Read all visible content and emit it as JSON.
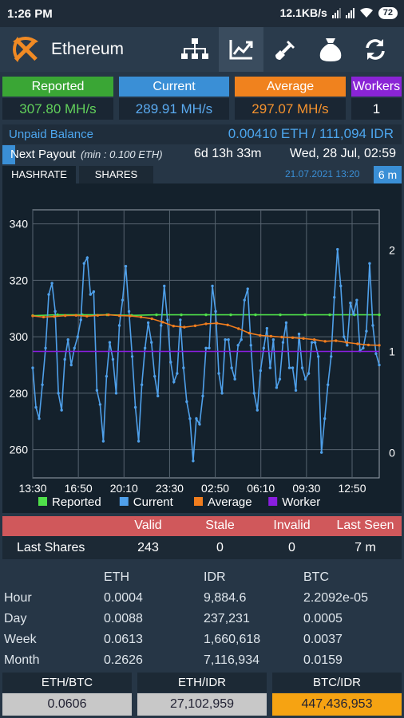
{
  "status": {
    "time": "1:26 PM",
    "speed": "12.1KB/s",
    "battery": "72"
  },
  "header": {
    "title": "Ethereum"
  },
  "nav": [
    "network-icon",
    "chart-icon",
    "shovel-icon",
    "money-bag-icon",
    "refresh-icon"
  ],
  "stats": [
    {
      "label": "Reported",
      "value": "307.80 MH/s",
      "color": "#3aa635"
    },
    {
      "label": "Current",
      "value": "289.91 MH/s",
      "color": "#3a8fd6"
    },
    {
      "label": "Average",
      "value": "297.07 MH/s",
      "color": "#f0821e"
    },
    {
      "label": "Workers",
      "value": "1",
      "color": "#8a24d6"
    }
  ],
  "balance": {
    "label": "Unpaid Balance",
    "value": "0.00410 ETH / 111,094 IDR"
  },
  "payout": {
    "label": "Next Payout",
    "min": "(min : 0.100 ETH)",
    "eta": "6d 13h 33m",
    "date": "Wed, 28 Jul, 02:59"
  },
  "tabs": {
    "hashrate": "HASHRATE",
    "shares": "SHARES",
    "timestamp": "21.07.2021 13:20",
    "range": "6 m"
  },
  "chart_data": {
    "type": "line",
    "x_ticks": [
      "13:30",
      "16:50",
      "20:10",
      "23:30",
      "02:50",
      "06:10",
      "09:30",
      "12:50"
    ],
    "y_ticks": [
      "340",
      "320",
      "300",
      "280",
      "260"
    ],
    "y2_ticks": [
      "2",
      "1",
      "0"
    ],
    "ylim": [
      250,
      345
    ],
    "y2lim": [
      -0.25,
      2.4
    ],
    "grid": true,
    "legend": "bottom",
    "series": [
      {
        "name": "Reported",
        "color": "#4fe04a",
        "style": "flat",
        "values": [
          307.5,
          307.8,
          307.8,
          307.8,
          307.6,
          307.8,
          307.8,
          307.8,
          307.8,
          307.8,
          307.8,
          307.8,
          307.8,
          307.8,
          307.8
        ]
      },
      {
        "name": "Current",
        "color": "#4fa0ea",
        "values": [
          289,
          275,
          271,
          283,
          296,
          315,
          319,
          309,
          280,
          274,
          292,
          299,
          290,
          296,
          300,
          306,
          326,
          328,
          315,
          316,
          281,
          276,
          263,
          286,
          298,
          292,
          280,
          304,
          313,
          325,
          309,
          293,
          275,
          263,
          283,
          296,
          305,
          298,
          286,
          279,
          304,
          318,
          306,
          291,
          284,
          287,
          306,
          289,
          277,
          271,
          256,
          271,
          269,
          279,
          296,
          296,
          318,
          309,
          287,
          280,
          299,
          299,
          289,
          285,
          297,
          299,
          313,
          317,
          297,
          280,
          274,
          288,
          296,
          303,
          289,
          299,
          282,
          285,
          298,
          305,
          289,
          289,
          281,
          301,
          289,
          285,
          287,
          298,
          298,
          293,
          259,
          271,
          283,
          293,
          314,
          331,
          318,
          300,
          297,
          312,
          308,
          313,
          295,
          296,
          302,
          326,
          304,
          294,
          290
        ]
      },
      {
        "name": "Average",
        "color": "#f07d1e",
        "values": [
          307.4,
          307.0,
          307.2,
          307.5,
          307.6,
          307.3,
          307.6,
          307.8,
          307.5,
          307.4,
          307.0,
          306.4,
          305.2,
          303.8,
          303.4,
          303.9,
          304.6,
          304.8,
          304.2,
          302.9,
          301.3,
          300.5,
          300.2,
          299.9,
          299.7,
          299.4,
          299.0,
          298.4,
          298.6,
          298.0,
          297.5,
          297.1,
          297.0
        ]
      },
      {
        "name": "Worker",
        "color": "#8a1ee0",
        "axis": "right",
        "values": [
          1,
          1
        ]
      }
    ]
  },
  "shares": {
    "headers": [
      "Valid",
      "Stale",
      "Invalid",
      "Last Seen"
    ],
    "label": "Last Shares",
    "values": [
      "243",
      "0",
      "0",
      "7 m"
    ]
  },
  "earnings": {
    "columns": [
      "ETH",
      "IDR",
      "BTC"
    ],
    "rows": [
      {
        "label": "Hour",
        "eth": "0.0004",
        "idr": "9,884.6",
        "btc": "2.2092e-05"
      },
      {
        "label": "Day",
        "eth": "0.0088",
        "idr": "237,231",
        "btc": "0.0005"
      },
      {
        "label": "Week",
        "eth": "0.0613",
        "idr": "1,660,618",
        "btc": "0.0037"
      },
      {
        "label": "Month",
        "eth": "0.2626",
        "idr": "7,116,934",
        "btc": "0.0159"
      }
    ]
  },
  "prices": [
    {
      "label": "ETH/BTC",
      "value": "0.0606",
      "color": "#c8c8c8"
    },
    {
      "label": "ETH/IDR",
      "value": "27,102,959",
      "color": "#c8c8c8"
    },
    {
      "label": "BTC/IDR",
      "value": "447,436,953",
      "color": "#f6a312"
    }
  ]
}
